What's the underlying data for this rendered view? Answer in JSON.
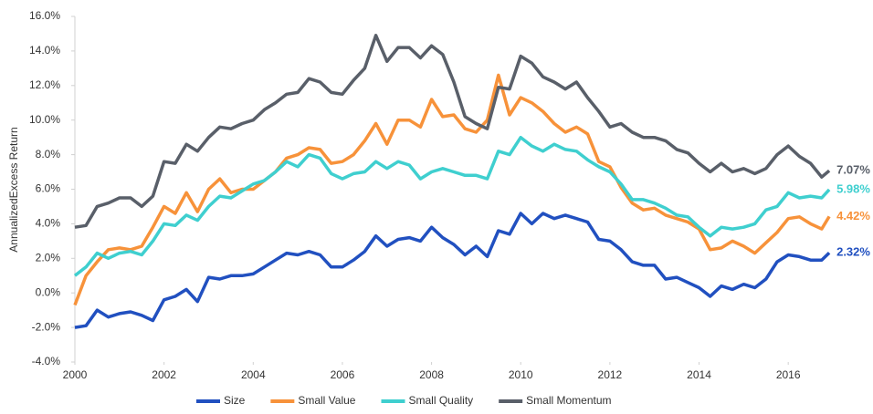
{
  "chart_data": {
    "type": "line",
    "y_label": "AnnualizedExcess Return",
    "x": [
      2000,
      2000.25,
      2000.5,
      2000.75,
      2001,
      2001.25,
      2001.5,
      2001.75,
      2002,
      2002.25,
      2002.5,
      2002.75,
      2003,
      2003.25,
      2003.5,
      2003.75,
      2004,
      2004.25,
      2004.5,
      2004.75,
      2005,
      2005.25,
      2005.5,
      2005.75,
      2006,
      2006.25,
      2006.5,
      2006.75,
      2007,
      2007.25,
      2007.5,
      2007.75,
      2008,
      2008.25,
      2008.5,
      2008.75,
      2009,
      2009.25,
      2009.5,
      2009.75,
      2010,
      2010.25,
      2010.5,
      2010.75,
      2011,
      2011.25,
      2011.5,
      2011.75,
      2012,
      2012.25,
      2012.5,
      2012.75,
      2013,
      2013.25,
      2013.5,
      2013.75,
      2014,
      2014.25,
      2014.5,
      2014.75,
      2015,
      2015.25,
      2015.5,
      2015.75,
      2016,
      2016.25,
      2016.5,
      2016.75,
      2016.92
    ],
    "series": [
      {
        "name": "Size",
        "color": "#2150c0",
        "end_label": "2.32%",
        "values": [
          -2.0,
          -1.9,
          -1.0,
          -1.4,
          -1.2,
          -1.1,
          -1.3,
          -1.6,
          -0.4,
          -0.2,
          0.2,
          -0.5,
          0.9,
          0.8,
          1.0,
          1.0,
          1.1,
          1.5,
          1.9,
          2.3,
          2.2,
          2.4,
          2.2,
          1.5,
          1.5,
          1.9,
          2.4,
          3.3,
          2.7,
          3.1,
          3.2,
          3.0,
          3.8,
          3.2,
          2.8,
          2.2,
          2.7,
          2.1,
          3.6,
          3.4,
          4.6,
          4.0,
          4.6,
          4.3,
          4.5,
          4.3,
          4.1,
          3.1,
          3.0,
          2.5,
          1.8,
          1.6,
          1.6,
          0.8,
          0.9,
          0.6,
          0.3,
          -0.2,
          0.4,
          0.2,
          0.5,
          0.3,
          0.8,
          1.8,
          2.2,
          2.1,
          1.9,
          1.9,
          2.32
        ]
      },
      {
        "name": "Small Value",
        "color": "#f7923a",
        "end_label": "4.42%",
        "values": [
          -0.7,
          1.0,
          1.8,
          2.5,
          2.6,
          2.5,
          2.7,
          3.8,
          5.0,
          4.6,
          5.8,
          4.7,
          6.0,
          6.6,
          5.8,
          6.0,
          6.0,
          6.5,
          7.0,
          7.8,
          8.0,
          8.4,
          8.3,
          7.5,
          7.6,
          8.0,
          8.8,
          9.8,
          8.6,
          10.0,
          10.0,
          9.6,
          11.2,
          10.2,
          10.3,
          9.5,
          9.3,
          10.0,
          12.6,
          10.3,
          11.3,
          11.0,
          10.5,
          9.8,
          9.3,
          9.6,
          9.2,
          7.6,
          7.3,
          6.1,
          5.2,
          4.8,
          4.9,
          4.5,
          4.3,
          4.1,
          3.7,
          2.5,
          2.6,
          3.0,
          2.7,
          2.3,
          2.9,
          3.5,
          4.3,
          4.4,
          4.0,
          3.7,
          4.42
        ]
      },
      {
        "name": "Small Quality",
        "color": "#3fcfcf",
        "end_label": "5.98%",
        "values": [
          1.0,
          1.5,
          2.3,
          2.0,
          2.3,
          2.4,
          2.2,
          3.0,
          4.0,
          3.9,
          4.5,
          4.2,
          5.0,
          5.6,
          5.5,
          5.9,
          6.3,
          6.5,
          7.0,
          7.6,
          7.3,
          8.0,
          7.8,
          6.9,
          6.6,
          6.9,
          7.0,
          7.6,
          7.2,
          7.6,
          7.4,
          6.6,
          7.0,
          7.2,
          7.0,
          6.8,
          6.8,
          6.6,
          8.2,
          8.0,
          9.0,
          8.5,
          8.2,
          8.6,
          8.3,
          8.2,
          7.7,
          7.3,
          7.0,
          6.3,
          5.4,
          5.4,
          5.2,
          4.9,
          4.5,
          4.4,
          3.8,
          3.3,
          3.8,
          3.7,
          3.8,
          4.0,
          4.8,
          5.0,
          5.8,
          5.5,
          5.6,
          5.5,
          5.98
        ]
      },
      {
        "name": "Small Momentum",
        "color": "#595f69",
        "end_label": "7.07%",
        "values": [
          3.8,
          3.9,
          5.0,
          5.2,
          5.5,
          5.5,
          5.0,
          5.6,
          7.6,
          7.5,
          8.6,
          8.2,
          9.0,
          9.6,
          9.5,
          9.8,
          10.0,
          10.6,
          11.0,
          11.5,
          11.6,
          12.4,
          12.2,
          11.6,
          11.5,
          12.3,
          13.0,
          14.9,
          13.4,
          14.2,
          14.2,
          13.6,
          14.3,
          13.8,
          12.2,
          10.2,
          9.8,
          9.5,
          11.9,
          11.8,
          13.7,
          13.3,
          12.5,
          12.2,
          11.8,
          12.2,
          11.3,
          10.5,
          9.6,
          9.8,
          9.3,
          9.0,
          9.0,
          8.8,
          8.3,
          8.1,
          7.5,
          7.0,
          7.5,
          7.0,
          7.2,
          6.9,
          7.2,
          8.0,
          8.5,
          7.9,
          7.5,
          6.7,
          7.07
        ]
      }
    ],
    "xlim": [
      2000,
      2017
    ],
    "xticks": [
      2000,
      2002,
      2004,
      2006,
      2008,
      2010,
      2012,
      2014,
      2016
    ],
    "ylim": [
      -4,
      16
    ],
    "yticks": [
      {
        "value": -4,
        "label": "-4.0%"
      },
      {
        "value": -2,
        "label": "-2.0%"
      },
      {
        "value": 0,
        "label": "0.0%"
      },
      {
        "value": 2,
        "label": "2.0%"
      },
      {
        "value": 4,
        "label": "4.0%"
      },
      {
        "value": 6,
        "label": "6.0%"
      },
      {
        "value": 8,
        "label": "8.0%"
      },
      {
        "value": 10,
        "label": "10.0%"
      },
      {
        "value": 12,
        "label": "12.0%"
      },
      {
        "value": 14,
        "label": "14.0%"
      },
      {
        "value": 16,
        "label": "16.0%"
      }
    ],
    "grid": false,
    "legend": "bottom"
  }
}
